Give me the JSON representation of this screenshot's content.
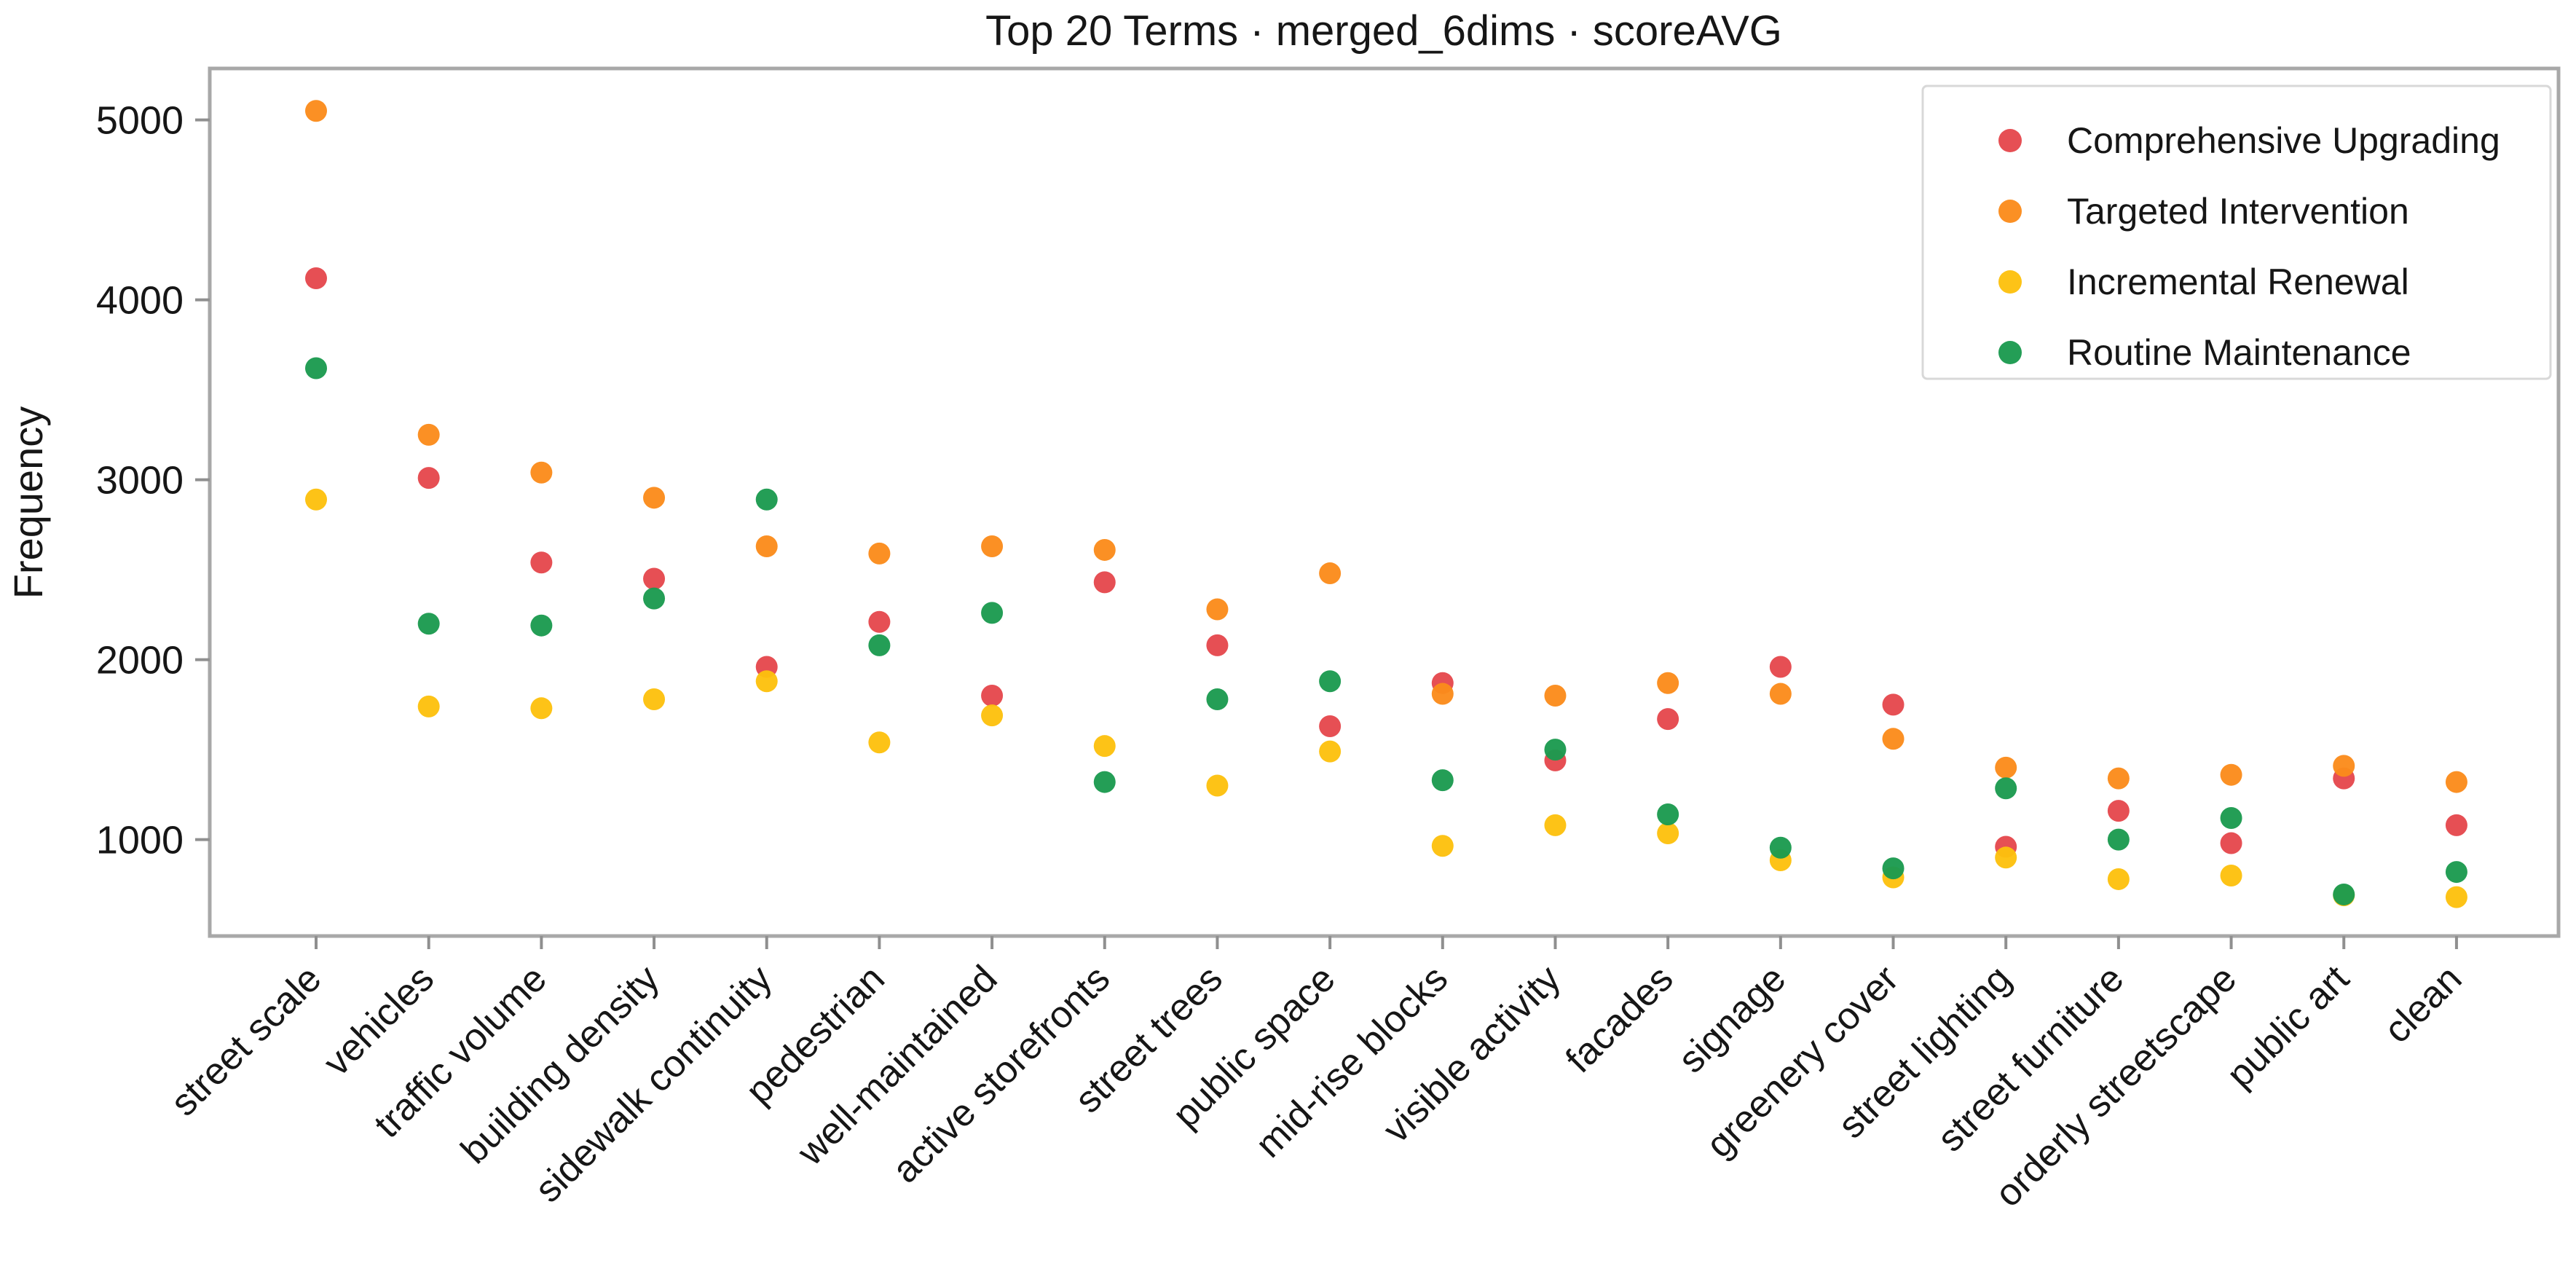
{
  "chart_data": {
    "type": "scatter",
    "title": "Top 20 Terms · merged_6dims · scoreAVG",
    "xlabel": "",
    "ylabel": "Frequency",
    "grid": false,
    "legend_position": "upper right",
    "ylim": [
      464,
      5286
    ],
    "yticks": [
      1000,
      2000,
      3000,
      4000,
      5000
    ],
    "categories": [
      "street scale",
      "vehicles",
      "traffic volume",
      "building density",
      "sidewalk continuity",
      "pedestrian",
      "well-maintained",
      "active storefronts",
      "street trees",
      "public space",
      "mid-rise blocks",
      "visible activity",
      "facades",
      "signage",
      "greenery cover",
      "street lighting",
      "street furniture",
      "orderly streetscape",
      "public art",
      "clean"
    ],
    "series": [
      {
        "name": "Comprehensive Upgrading",
        "color": "#e5484d",
        "values": [
          4120,
          3010,
          2540,
          2450,
          1960,
          2210,
          1800,
          2430,
          2080,
          1630,
          1870,
          1440,
          1670,
          1960,
          1750,
          960,
          1160,
          980,
          1340,
          1080
        ]
      },
      {
        "name": "Targeted Intervention",
        "color": "#fb8b1b",
        "values": [
          5050,
          3250,
          3040,
          2900,
          2630,
          2590,
          2630,
          2610,
          2280,
          2480,
          1810,
          1800,
          1870,
          1810,
          1560,
          1400,
          1340,
          1360,
          1410,
          1320
        ]
      },
      {
        "name": "Incremental Renewal",
        "color": "#fdc10e",
        "values": [
          2890,
          1740,
          1730,
          1780,
          1880,
          1540,
          1690,
          1520,
          1300,
          1490,
          965,
          1080,
          1035,
          885,
          790,
          900,
          780,
          800,
          690,
          680
        ]
      },
      {
        "name": "Routine Maintenance",
        "color": "#1b9a4f",
        "values": [
          3620,
          2200,
          2190,
          2340,
          2890,
          2080,
          2260,
          1320,
          1780,
          1880,
          1330,
          1500,
          1140,
          955,
          840,
          1285,
          1000,
          1120,
          695,
          820
        ]
      }
    ]
  }
}
